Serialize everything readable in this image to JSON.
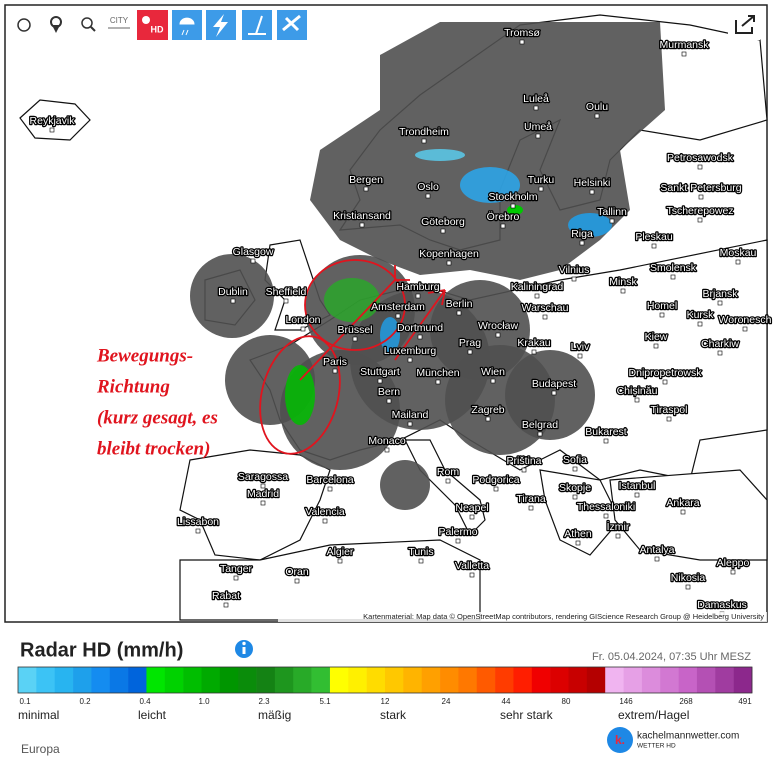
{
  "toolbar": {
    "city_button": "CITY",
    "hd_button": "HD"
  },
  "map": {
    "cities": [
      "Tromsø",
      "Murmansk",
      "Reykjavik",
      "Luleå",
      "Oulu",
      "Umeå",
      "Trondheim",
      "Petrosawodsk",
      "Bergen",
      "Oslo",
      "Turku",
      "Helsinki",
      "Sankt Petersburg",
      "Stockholm",
      "Kristiansand",
      "Göteborg",
      "Örebro",
      "Tallinn",
      "Tscherepowez",
      "Riga",
      "Pleskau",
      "Glasgow",
      "Kopenhagen",
      "Moskau",
      "Vilnius",
      "Smolensk",
      "Dublin",
      "Sheffield",
      "Hamburg",
      "Kaliningrad",
      "Minsk",
      "Brjansk",
      "Berlin",
      "Warschau",
      "Homel",
      "Amsterdam",
      "London",
      "Kursk",
      "Woronesch",
      "Brüssel",
      "Dortmund",
      "Wrocław",
      "Kiew",
      "Krakau",
      "Prag",
      "Lviv",
      "Charkiw",
      "Luxemburg",
      "Paris",
      "Stuttgart",
      "München",
      "Wien",
      "Dnipropetrowsk",
      "Budapest",
      "Chișinău",
      "Bern",
      "Tiraspol",
      "Mailand",
      "Zagreb",
      "Belgrad",
      "Bukarest",
      "Monaco",
      "Priština",
      "Sofia",
      "Istanbul",
      "Saragossa",
      "Barcelona",
      "Rom",
      "Podgorica",
      "Madrid",
      "Skopje",
      "Tirana",
      "Thessaloniki",
      "Ankara",
      "Neapel",
      "Valencia",
      "Lissabon",
      "İzmir",
      "Palermo",
      "Athen",
      "Algier",
      "Tunis",
      "Antalya",
      "Aleppo",
      "Tanger",
      "Oran",
      "Valletta",
      "Nikosia",
      "Rabat",
      "Damaskus"
    ],
    "attribution": "Kartenmaterial: Map data © OpenStreetMap contributors, rendering GIScience Research Group @ Heidelberg University",
    "annotation": [
      "Bewegungs-",
      "Richtung",
      "(kurz gesagt, es",
      "bleibt trocken)"
    ]
  },
  "legend": {
    "title": "Radar HD (mm/h)",
    "timestamp": "Fr. 05.04.2024, 07:35 Uhr MESZ",
    "colors": [
      "#5ad2f5",
      "#3cc3f5",
      "#28b4f0",
      "#1ea0eb",
      "#148cf0",
      "#0a78e6",
      "#0064dc",
      "#00e600",
      "#00d200",
      "#00be00",
      "#00aa00",
      "#009600",
      "#0a8c0a",
      "#148214",
      "#1e961e",
      "#28aa28",
      "#32be32",
      "#ffff00",
      "#fff000",
      "#ffdc00",
      "#ffc800",
      "#ffb400",
      "#ffa000",
      "#ff8c00",
      "#ff7800",
      "#ff5a00",
      "#ff3c00",
      "#ff1e00",
      "#f00000",
      "#dc0000",
      "#c80000",
      "#b40000",
      "#f0b4f0",
      "#e6a0e6",
      "#dc8cdc",
      "#d278d2",
      "#c864c8",
      "#b450b4",
      "#a03ca0",
      "#8c288c"
    ],
    "ticks": [
      "0.1",
      "0.2",
      "0.4",
      "1.0",
      "2.3",
      "5.1",
      "12",
      "24",
      "44",
      "80",
      "146",
      "268",
      "491"
    ],
    "categories": [
      "minimal",
      "leicht",
      "mäßig",
      "stark",
      "sehr stark",
      "extrem/Hagel"
    ],
    "region": "Europa"
  },
  "logo": {
    "name": "kachelmannwetter.com",
    "tagline": "WETTER HD",
    "icon": "k."
  }
}
